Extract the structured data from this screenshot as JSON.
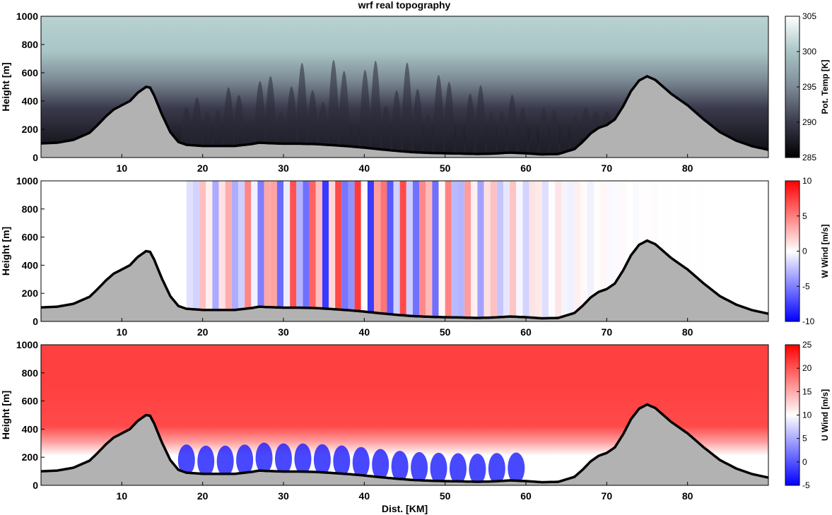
{
  "figure": {
    "title": "wrf real topography"
  },
  "chart_data": [
    {
      "type": "heatmap",
      "ylabel": "Height [m]",
      "xlabel": "",
      "xlim": [
        0,
        90
      ],
      "ylim": [
        0,
        1000
      ],
      "xticks": [
        10,
        20,
        30,
        40,
        50,
        60,
        70,
        80
      ],
      "yticks": [
        0,
        200,
        400,
        600,
        800,
        1000
      ],
      "colorbar": {
        "label": "Pot. Temp [K]",
        "min": 285,
        "max": 305,
        "ticks": [
          285,
          290,
          295,
          300,
          305
        ]
      },
      "colors": [
        "#000000",
        "#3a3a4c",
        "#7d8b96",
        "#a9c5c5",
        "#ffffff"
      ]
    },
    {
      "type": "heatmap",
      "ylabel": "Height [m]",
      "xlabel": "",
      "xlim": [
        0,
        90
      ],
      "ylim": [
        0,
        1000
      ],
      "xticks": [
        10,
        20,
        30,
        40,
        50,
        60,
        70,
        80
      ],
      "yticks": [
        0,
        200,
        400,
        600,
        800,
        1000
      ],
      "colorbar": {
        "label": "W Wind [m/s]",
        "min": -10,
        "max": 10,
        "ticks": [
          -10,
          -5,
          0,
          5,
          10
        ]
      },
      "colors": [
        "#0000ff",
        "#ffffff",
        "#ff0000"
      ]
    },
    {
      "type": "heatmap",
      "ylabel": "Height [m]",
      "xlabel": "Dist. [KM]",
      "xlim": [
        0,
        90
      ],
      "ylim": [
        0,
        1000
      ],
      "xticks": [
        10,
        20,
        30,
        40,
        50,
        60,
        70,
        80
      ],
      "yticks": [
        0,
        200,
        400,
        600,
        800,
        1000
      ],
      "colorbar": {
        "label": "U Wind [m/s]",
        "min": -5,
        "max": 25,
        "ticks": [
          -5,
          0,
          5,
          10,
          15,
          20,
          25
        ]
      },
      "colors": [
        "#0000ff",
        "#ffffff",
        "#ff0000"
      ]
    }
  ],
  "topography": {
    "x": [
      0,
      2,
      4,
      6,
      7,
      8,
      9,
      10,
      11,
      12,
      13,
      13.5,
      14,
      15,
      16,
      17,
      18,
      20,
      22,
      24,
      26,
      27,
      28,
      30,
      32,
      34,
      36,
      38,
      40,
      42,
      44,
      46,
      48,
      50,
      52,
      54,
      56,
      58,
      60,
      62,
      64,
      66,
      67,
      68,
      69,
      70,
      71,
      72,
      73,
      74,
      75,
      76,
      77,
      78,
      79,
      80,
      82,
      84,
      86,
      88,
      90
    ],
    "y": [
      100,
      105,
      125,
      175,
      230,
      290,
      340,
      370,
      400,
      460,
      500,
      495,
      440,
      300,
      180,
      110,
      90,
      82,
      82,
      82,
      95,
      105,
      102,
      98,
      98,
      95,
      88,
      80,
      70,
      58,
      47,
      38,
      33,
      30,
      28,
      25,
      28,
      35,
      30,
      22,
      25,
      60,
      110,
      170,
      210,
      230,
      270,
      360,
      470,
      545,
      575,
      550,
      500,
      450,
      410,
      370,
      270,
      180,
      120,
      80,
      55
    ]
  },
  "colors": {
    "terrain": "#b2b2b2",
    "terrain_outline": "#000000"
  }
}
